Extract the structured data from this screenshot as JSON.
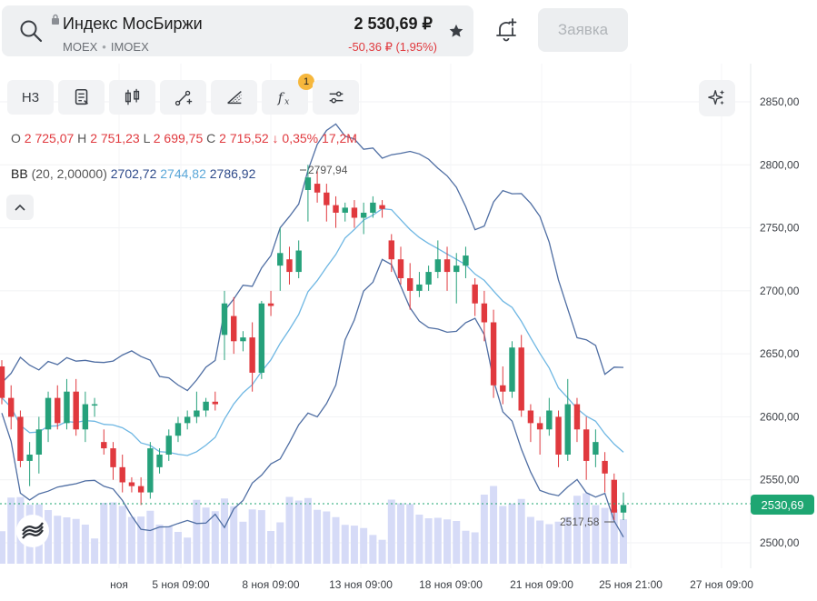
{
  "header": {
    "ticker_name": "Индекс МосБиржи",
    "exchange": "MOEX",
    "code": "IMOEX",
    "price": "2 530,69 ₽",
    "change": "-50,36 ₽ (1,95%)",
    "order_label": "Заявка"
  },
  "toolbar": {
    "interval_label": "Н3",
    "indicator_badge": "1"
  },
  "ohlc": {
    "o_key": "O",
    "o_val": "2 725,07",
    "h_key": "H",
    "h_val": "2 751,23",
    "l_key": "L",
    "l_val": "2 699,75",
    "c_key": "C",
    "c_val": "2 715,52",
    "pct": "↓ 0,35%",
    "volume": "17,2M"
  },
  "indicator": {
    "name": "BB",
    "params": "(20, 2,00000)",
    "lower": "2702,72",
    "middle": "2744,82",
    "upper": "2786,92"
  },
  "annotations": {
    "high_label": "2797,94",
    "low_label": "2517,58"
  },
  "current_price_tag": "2530,69",
  "colors": {
    "up": "#26a17b",
    "down": "#e0393e",
    "bb_outer": "#4f6ea3",
    "bb_mid": "#6fb7e3",
    "volume": "#d6dbf7",
    "price_tag": "#1ea672"
  },
  "chart_data": {
    "type": "candlestick",
    "y_ticks": [
      "2850,00",
      "2800,00",
      "2750,00",
      "2700,00",
      "2650,00",
      "2600,00",
      "2550,00",
      "2500,00"
    ],
    "x_ticks": [
      "ноя",
      "5 ноя 09:00",
      "8 ноя 09:00",
      "13 ноя 09:00",
      "18 ноя 09:00",
      "21 ноя 09:00",
      "25 ноя 21:00",
      "27 ноя 09:00"
    ],
    "ylim": [
      2485,
      2870
    ],
    "candles": [
      [
        2640,
        2645,
        2610,
        2615
      ],
      [
        2615,
        2625,
        2590,
        2600
      ],
      [
        2600,
        2605,
        2560,
        2565
      ],
      [
        2565,
        2580,
        2545,
        2570
      ],
      [
        2570,
        2600,
        2555,
        2590
      ],
      [
        2590,
        2620,
        2580,
        2615
      ],
      [
        2615,
        2625,
        2590,
        2595
      ],
      [
        2595,
        2630,
        2590,
        2620
      ],
      [
        2620,
        2630,
        2585,
        2590
      ],
      [
        2590,
        2620,
        2580,
        2610
      ],
      [
        2610,
        2615,
        2600,
        2610
      ],
      [
        2580,
        2590,
        2570,
        2575
      ],
      [
        2575,
        2580,
        2550,
        2560
      ],
      [
        2560,
        2570,
        2540,
        2548
      ],
      [
        2548,
        2552,
        2540,
        2545
      ],
      [
        2545,
        2552,
        2530,
        2540
      ],
      [
        2540,
        2580,
        2535,
        2575
      ],
      [
        2560,
        2575,
        2555,
        2570
      ],
      [
        2570,
        2590,
        2565,
        2585
      ],
      [
        2585,
        2600,
        2580,
        2595
      ],
      [
        2595,
        2605,
        2590,
        2600
      ],
      [
        2600,
        2620,
        2595,
        2605
      ],
      [
        2605,
        2615,
        2600,
        2612
      ],
      [
        2612,
        2620,
        2605,
        2610
      ],
      [
        2665,
        2700,
        2645,
        2690
      ],
      [
        2680,
        2695,
        2650,
        2660
      ],
      [
        2660,
        2668,
        2652,
        2663
      ],
      [
        2663,
        2675,
        2620,
        2635
      ],
      [
        2635,
        2692,
        2630,
        2690
      ],
      [
        2690,
        2700,
        2680,
        2688
      ],
      [
        2720,
        2750,
        2700,
        2730
      ],
      [
        2725,
        2735,
        2705,
        2715
      ],
      [
        2715,
        2740,
        2710,
        2732
      ],
      [
        2780,
        2800,
        2755,
        2790
      ],
      [
        2785,
        2795,
        2770,
        2778
      ],
      [
        2778,
        2785,
        2755,
        2768
      ],
      [
        2768,
        2775,
        2750,
        2762
      ],
      [
        2762,
        2770,
        2755,
        2766
      ],
      [
        2766,
        2772,
        2750,
        2758
      ],
      [
        2758,
        2770,
        2745,
        2762
      ],
      [
        2762,
        2775,
        2758,
        2770
      ],
      [
        2768,
        2772,
        2758,
        2765
      ],
      [
        2740,
        2745,
        2715,
        2725
      ],
      [
        2725,
        2735,
        2705,
        2710
      ],
      [
        2710,
        2722,
        2685,
        2700
      ],
      [
        2700,
        2715,
        2695,
        2705
      ],
      [
        2705,
        2720,
        2700,
        2715
      ],
      [
        2715,
        2740,
        2710,
        2725
      ],
      [
        2725,
        2735,
        2700,
        2715
      ],
      [
        2715,
        2730,
        2690,
        2720
      ],
      [
        2720,
        2735,
        2710,
        2728
      ],
      [
        2705,
        2710,
        2680,
        2690
      ],
      [
        2690,
        2700,
        2660,
        2675
      ],
      [
        2675,
        2685,
        2615,
        2625
      ],
      [
        2625,
        2640,
        2610,
        2620
      ],
      [
        2620,
        2660,
        2615,
        2655
      ],
      [
        2655,
        2665,
        2600,
        2605
      ],
      [
        2605,
        2610,
        2580,
        2595
      ],
      [
        2595,
        2600,
        2570,
        2590
      ],
      [
        2590,
        2615,
        2585,
        2605
      ],
      [
        2600,
        2605,
        2560,
        2570
      ],
      [
        2570,
        2630,
        2565,
        2610
      ],
      [
        2610,
        2615,
        2580,
        2590
      ],
      [
        2590,
        2600,
        2550,
        2565
      ],
      [
        2570,
        2590,
        2560,
        2580
      ],
      [
        2565,
        2572,
        2540,
        2555
      ],
      [
        2550,
        2555,
        2518,
        2524
      ],
      [
        2524,
        2540,
        2518,
        2530
      ]
    ]
  }
}
